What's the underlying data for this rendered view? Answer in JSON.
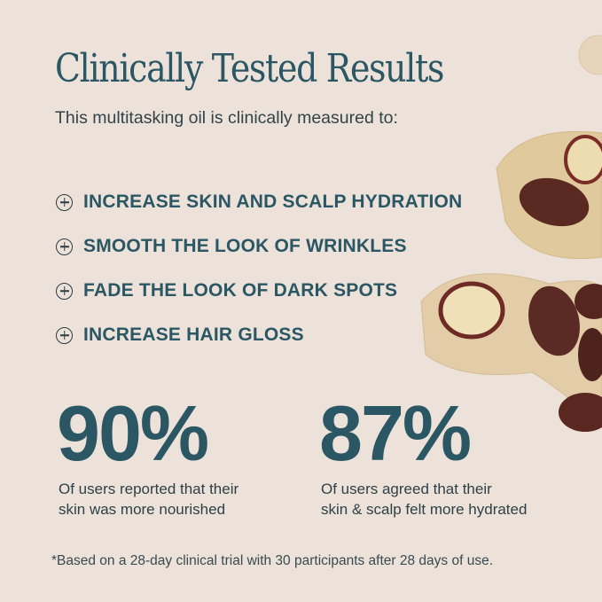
{
  "title": "Clinically Tested Results",
  "subtitle": "This multitasking oil is clinically measured to:",
  "benefits": [
    {
      "icon": "plus-circle-icon",
      "label": "INCREASE SKIN AND SCALP HYDRATION"
    },
    {
      "icon": "plus-circle-icon",
      "label": "SMOOTH THE LOOK OF WRINKLES"
    },
    {
      "icon": "plus-circle-icon",
      "label": "FADE THE LOOK OF DARK SPOTS"
    },
    {
      "icon": "plus-circle-icon",
      "label": "INCREASE HAIR GLOSS"
    }
  ],
  "stats": [
    {
      "value": "90%",
      "line1": "Of users reported that their",
      "line2": "skin was more nourished"
    },
    {
      "value": "87%",
      "line1": "Of users agreed that their",
      "line2": "skin & scalp felt more hydrated"
    }
  ],
  "footnote": "*Based on a 28-day clinical trial with 30 participants after 28 days of use.",
  "colors": {
    "background": "#ece2d9",
    "accent": "#2b5765"
  }
}
